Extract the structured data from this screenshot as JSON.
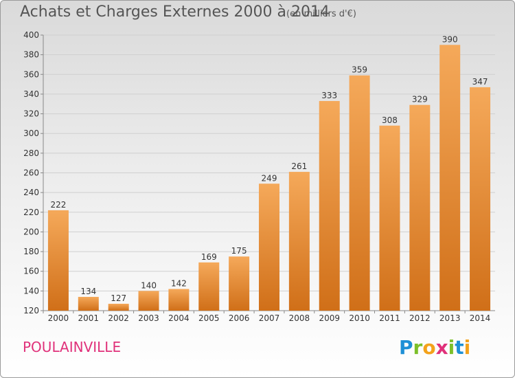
{
  "header": {
    "title": "Achats et Charges Externes 2000 à 2014",
    "subtitle": "(en milliers d'€)"
  },
  "footer": {
    "place": "POULAINVILLE",
    "logo_text": "Proxiti",
    "logo_letters": [
      {
        "ch": "P",
        "color": "#1e90d6"
      },
      {
        "ch": "r",
        "color": "#7cbf2a"
      },
      {
        "ch": "o",
        "color": "#f3a21b"
      },
      {
        "ch": "x",
        "color": "#e0317a"
      },
      {
        "ch": "i",
        "color": "#7cbf2a"
      },
      {
        "ch": "t",
        "color": "#1e90d6"
      },
      {
        "ch": "i",
        "color": "#f3a21b"
      }
    ]
  },
  "chart_data": {
    "type": "bar",
    "title": "Achats et Charges Externes 2000 à 2014",
    "subtitle": "(en milliers d'€)",
    "categories": [
      "2000",
      "2001",
      "2002",
      "2003",
      "2004",
      "2005",
      "2006",
      "2007",
      "2008",
      "2009",
      "2010",
      "2011",
      "2012",
      "2013",
      "2014"
    ],
    "values": [
      222,
      134,
      127,
      140,
      142,
      169,
      175,
      249,
      261,
      333,
      359,
      308,
      329,
      390,
      347
    ],
    "ylim": [
      120,
      400
    ],
    "yticks": [
      120,
      140,
      160,
      180,
      200,
      220,
      240,
      260,
      280,
      300,
      320,
      340,
      360,
      380,
      400
    ],
    "grid": true,
    "bar_color": "#f0a04c",
    "bar_color_dark": "#d2731d"
  }
}
